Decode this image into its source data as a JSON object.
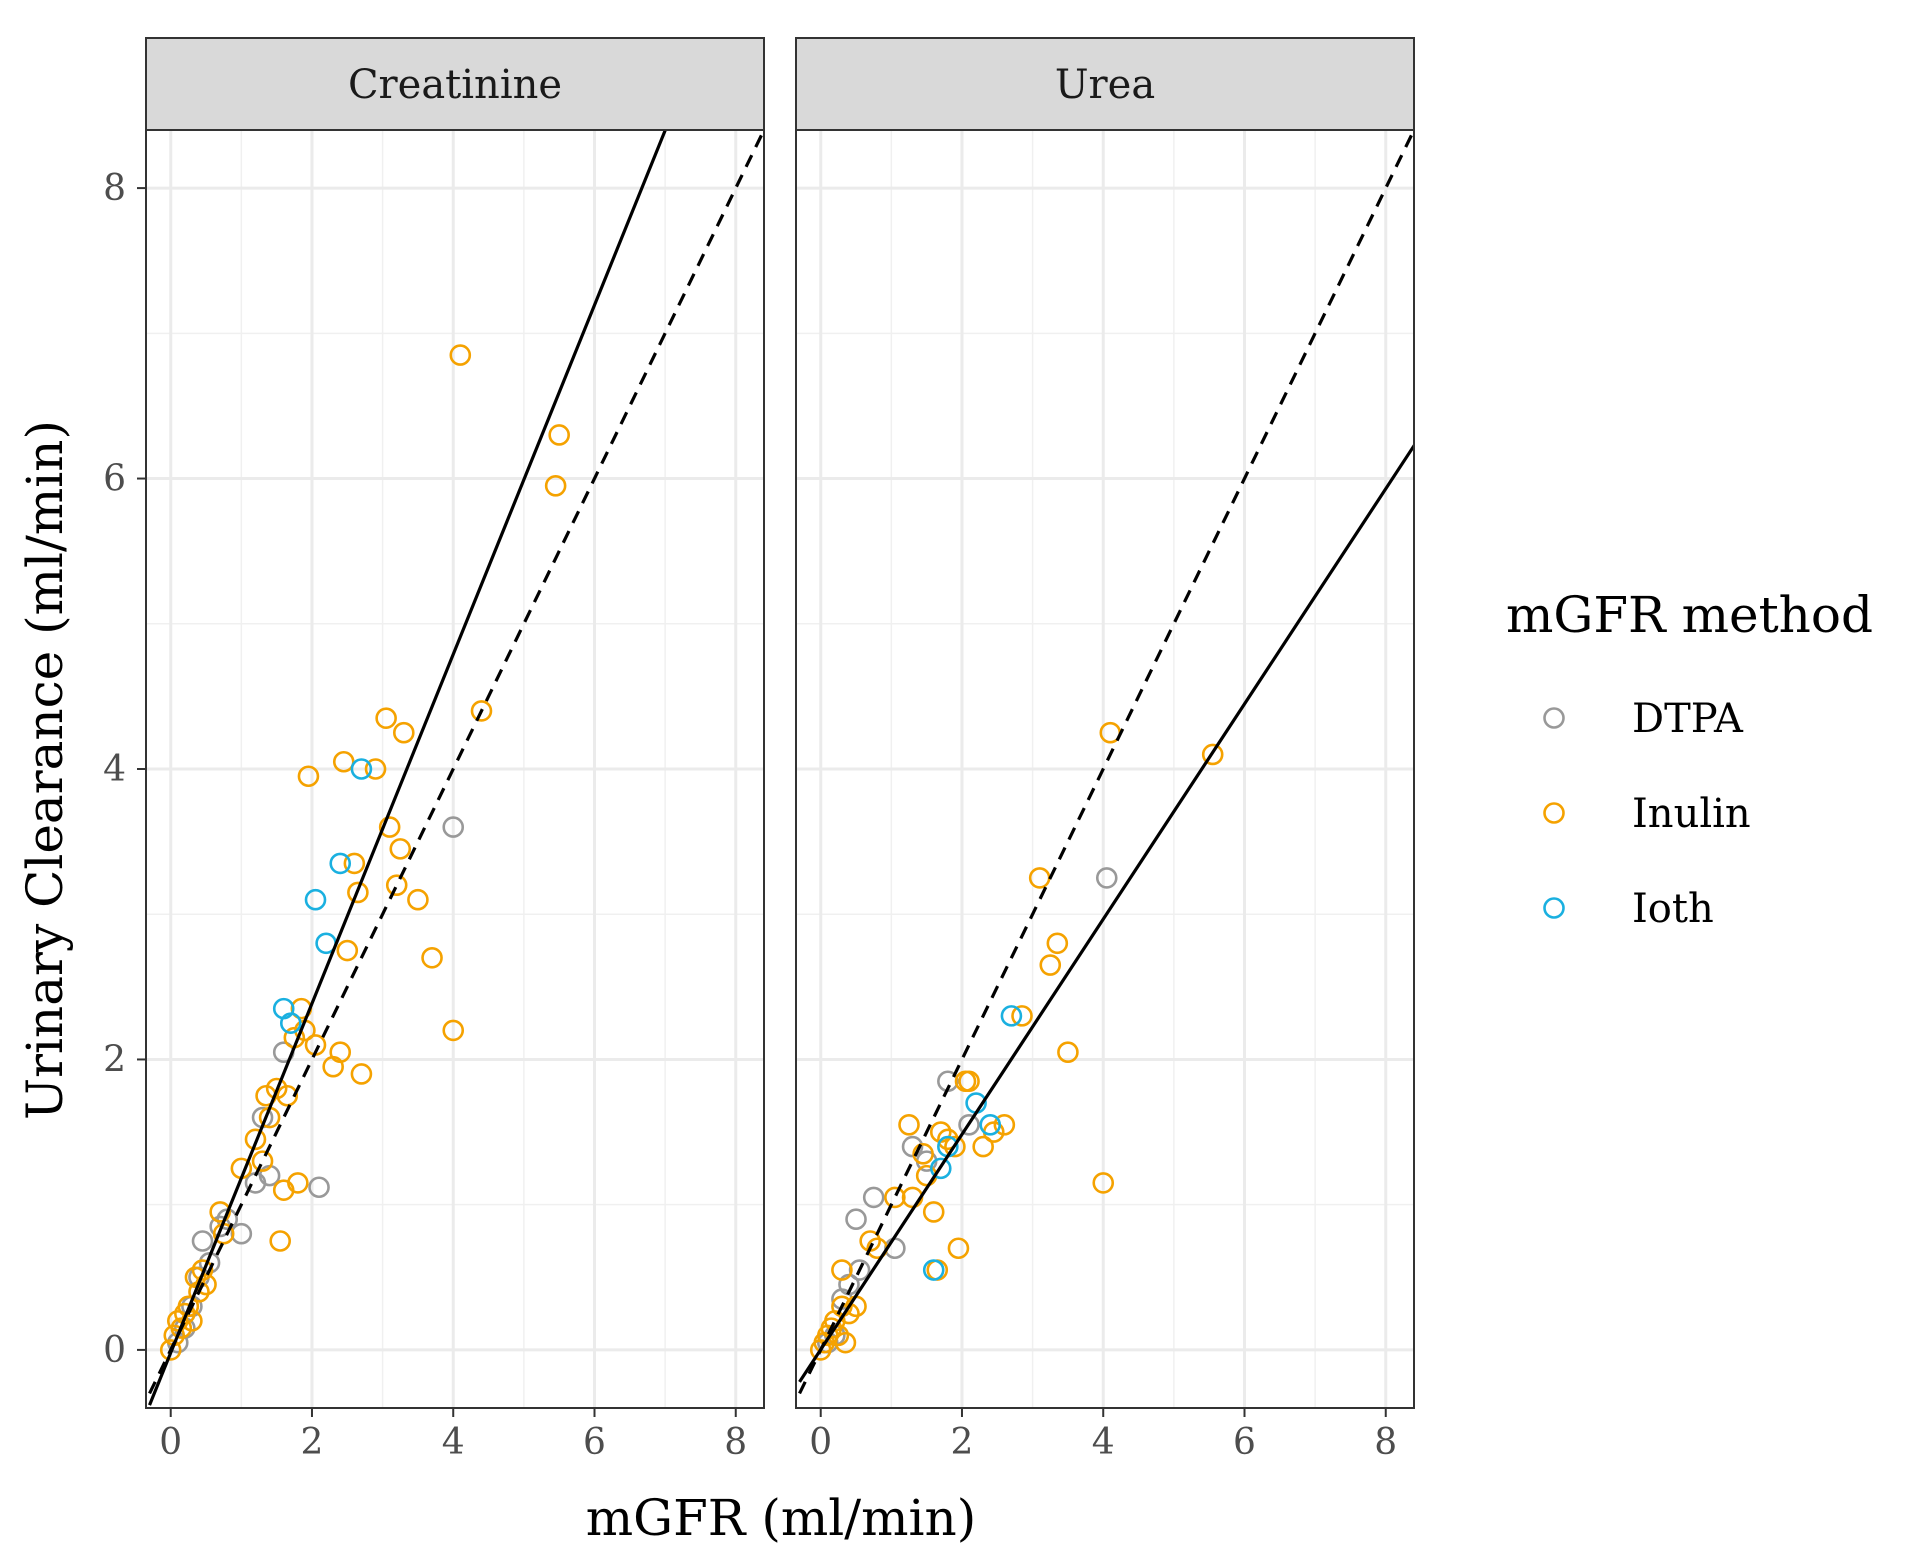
{
  "chart_data": {
    "type": "scatter",
    "facets": [
      {
        "title": "Creatinine",
        "series": [
          {
            "name": "DTPA",
            "points": [
              [
                0.1,
                0.05
              ],
              [
                0.2,
                0.15
              ],
              [
                0.3,
                0.3
              ],
              [
                0.4,
                0.5
              ],
              [
                0.45,
                0.75
              ],
              [
                0.55,
                0.6
              ],
              [
                0.7,
                0.85
              ],
              [
                0.8,
                0.9
              ],
              [
                1.0,
                0.8
              ],
              [
                1.2,
                1.15
              ],
              [
                1.3,
                1.6
              ],
              [
                1.4,
                1.2
              ],
              [
                1.6,
                2.05
              ],
              [
                2.1,
                1.12
              ],
              [
                4.0,
                3.6
              ]
            ]
          },
          {
            "name": "Inulin",
            "points": [
              [
                0.0,
                0.0
              ],
              [
                0.05,
                0.1
              ],
              [
                0.1,
                0.2
              ],
              [
                0.15,
                0.15
              ],
              [
                0.2,
                0.25
              ],
              [
                0.25,
                0.3
              ],
              [
                0.3,
                0.2
              ],
              [
                0.35,
                0.5
              ],
              [
                0.4,
                0.4
              ],
              [
                0.45,
                0.55
              ],
              [
                0.5,
                0.45
              ],
              [
                0.7,
                0.95
              ],
              [
                0.75,
                0.8
              ],
              [
                1.0,
                1.25
              ],
              [
                1.2,
                1.45
              ],
              [
                1.3,
                1.3
              ],
              [
                1.35,
                1.75
              ],
              [
                1.4,
                1.6
              ],
              [
                1.5,
                1.8
              ],
              [
                1.55,
                0.75
              ],
              [
                1.6,
                1.1
              ],
              [
                1.65,
                1.75
              ],
              [
                1.75,
                2.15
              ],
              [
                1.8,
                1.15
              ],
              [
                1.85,
                2.35
              ],
              [
                1.9,
                2.2
              ],
              [
                1.95,
                3.95
              ],
              [
                2.05,
                2.1
              ],
              [
                2.3,
                1.95
              ],
              [
                2.4,
                2.05
              ],
              [
                2.45,
                4.05
              ],
              [
                2.5,
                2.75
              ],
              [
                2.6,
                3.35
              ],
              [
                2.65,
                3.15
              ],
              [
                2.7,
                1.9
              ],
              [
                2.9,
                4.0
              ],
              [
                3.05,
                4.35
              ],
              [
                3.1,
                3.6
              ],
              [
                3.2,
                3.2
              ],
              [
                3.25,
                3.45
              ],
              [
                3.3,
                4.25
              ],
              [
                3.5,
                3.1
              ],
              [
                3.7,
                2.7
              ],
              [
                4.0,
                2.2
              ],
              [
                4.1,
                6.85
              ],
              [
                4.4,
                4.4
              ],
              [
                5.45,
                5.95
              ],
              [
                5.5,
                6.3
              ]
            ]
          },
          {
            "name": "Ioth",
            "points": [
              [
                1.6,
                2.35
              ],
              [
                1.7,
                2.25
              ],
              [
                2.05,
                3.1
              ],
              [
                2.2,
                2.8
              ],
              [
                2.4,
                3.35
              ],
              [
                2.7,
                4.0
              ]
            ]
          }
        ],
        "lines": [
          {
            "name": "fit",
            "style": "solid",
            "x": [
              -0.3,
              8.5
            ],
            "y": [
              -0.38,
              10.2
            ]
          },
          {
            "name": "identity",
            "style": "dashed",
            "x": [
              -0.3,
              8.5
            ],
            "y": [
              -0.3,
              8.5
            ]
          }
        ]
      },
      {
        "title": "Urea",
        "series": [
          {
            "name": "DTPA",
            "points": [
              [
                0.1,
                0.05
              ],
              [
                0.2,
                0.1
              ],
              [
                0.3,
                0.35
              ],
              [
                0.4,
                0.45
              ],
              [
                0.5,
                0.9
              ],
              [
                0.55,
                0.55
              ],
              [
                0.75,
                1.05
              ],
              [
                1.05,
                0.7
              ],
              [
                1.3,
                1.4
              ],
              [
                1.5,
                1.3
              ],
              [
                1.8,
                1.85
              ],
              [
                2.1,
                1.55
              ],
              [
                4.05,
                3.25
              ]
            ]
          },
          {
            "name": "Inulin",
            "points": [
              [
                0.0,
                0.0
              ],
              [
                0.05,
                0.05
              ],
              [
                0.1,
                0.1
              ],
              [
                0.15,
                0.15
              ],
              [
                0.2,
                0.2
              ],
              [
                0.25,
                0.1
              ],
              [
                0.3,
                0.3
              ],
              [
                0.35,
                0.05
              ],
              [
                0.4,
                0.25
              ],
              [
                0.5,
                0.3
              ],
              [
                0.3,
                0.55
              ],
              [
                0.7,
                0.75
              ],
              [
                0.8,
                0.7
              ],
              [
                1.05,
                1.05
              ],
              [
                1.25,
                1.55
              ],
              [
                1.3,
                1.05
              ],
              [
                1.45,
                1.35
              ],
              [
                1.5,
                1.2
              ],
              [
                1.6,
                0.95
              ],
              [
                1.65,
                0.55
              ],
              [
                1.7,
                1.5
              ],
              [
                1.8,
                1.45
              ],
              [
                1.9,
                1.4
              ],
              [
                1.95,
                0.7
              ],
              [
                2.05,
                1.85
              ],
              [
                2.1,
                1.85
              ],
              [
                2.3,
                1.4
              ],
              [
                2.45,
                1.5
              ],
              [
                2.6,
                1.55
              ],
              [
                2.85,
                2.3
              ],
              [
                3.1,
                3.25
              ],
              [
                3.25,
                2.65
              ],
              [
                3.35,
                2.8
              ],
              [
                3.5,
                2.05
              ],
              [
                4.0,
                1.15
              ],
              [
                4.1,
                4.25
              ],
              [
                5.55,
                4.1
              ]
            ]
          },
          {
            "name": "Ioth",
            "points": [
              [
                1.6,
                0.55
              ],
              [
                1.7,
                1.25
              ],
              [
                1.8,
                1.4
              ],
              [
                2.2,
                1.7
              ],
              [
                2.4,
                1.55
              ],
              [
                2.7,
                2.3
              ]
            ]
          }
        ],
        "lines": [
          {
            "name": "fit",
            "style": "solid",
            "x": [
              -0.3,
              8.5
            ],
            "y": [
              -0.22,
              6.3
            ]
          },
          {
            "name": "identity",
            "style": "dashed",
            "x": [
              -0.3,
              8.5
            ],
            "y": [
              -0.3,
              8.5
            ]
          }
        ]
      }
    ],
    "xlabel": "mGFR (ml/min)",
    "ylabel": "Urinary Clearance (ml/min)",
    "xlim": [
      -0.35,
      8.4
    ],
    "ylim": [
      -0.4,
      8.4
    ],
    "xticks": [
      0,
      2,
      4,
      6,
      8
    ],
    "yticks": [
      0,
      2,
      4,
      6,
      8
    ],
    "legend": {
      "title": "mGFR method",
      "placement": "right",
      "entries": [
        {
          "name": "DTPA",
          "color": "#999999"
        },
        {
          "name": "Inulin",
          "color": "#F5A200"
        },
        {
          "name": "Ioth",
          "color": "#1AB0E0"
        }
      ]
    }
  }
}
